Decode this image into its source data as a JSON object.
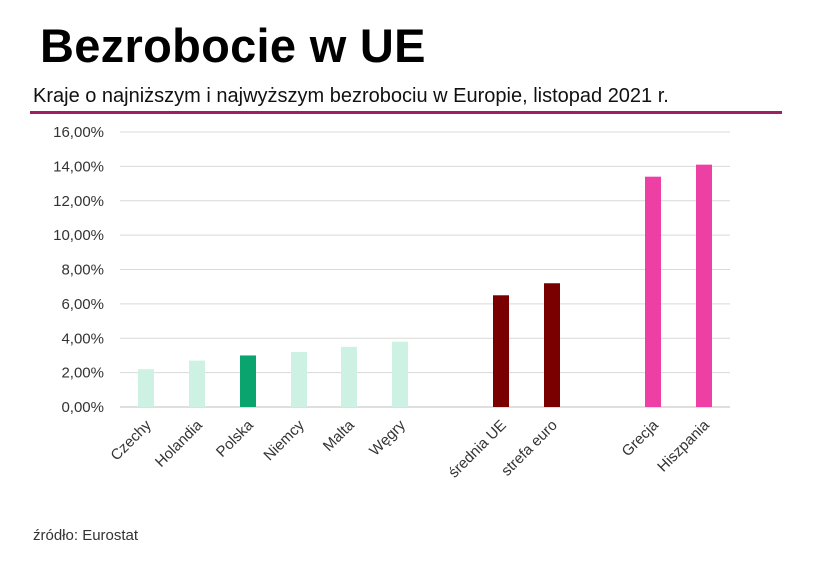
{
  "title": "Bezrobocie w UE",
  "subtitle": "Kraje o najniższym i najwyższym bezrobociu w Europie, listopad 2021 r.",
  "source": "źródło: Eurostat",
  "colors": {
    "accent_rule": "#9e1f63",
    "low_countries": "#cdf2e3",
    "poland": "#0aa46e",
    "averages": "#7a0000",
    "high_countries": "#ee3fa5",
    "grid": "#d9d9d9"
  },
  "chart_data": {
    "type": "bar",
    "title": "Kraje o najniższym i najwyższym bezrobociu w Europie, listopad 2021 r.",
    "xlabel": "",
    "ylabel": "",
    "ylim": [
      0,
      16
    ],
    "yticks": [
      "0,00%",
      "2,00%",
      "4,00%",
      "6,00%",
      "8,00%",
      "10,00%",
      "12,00%",
      "14,00%",
      "16,00%"
    ],
    "grid": true,
    "legend": "none",
    "categories": [
      "Czechy",
      "Holandia",
      "Polska",
      "Niemcy",
      "Malta",
      "Węgry",
      "średnia UE",
      "strefa euro",
      "Grecja",
      "Hiszpania"
    ],
    "values": [
      2.2,
      2.7,
      3.0,
      3.2,
      3.5,
      3.8,
      6.5,
      7.2,
      13.4,
      14.1
    ],
    "bar_colors": [
      "#cdf2e3",
      "#cdf2e3",
      "#0aa46e",
      "#cdf2e3",
      "#cdf2e3",
      "#cdf2e3",
      "#7a0000",
      "#7a0000",
      "#ee3fa5",
      "#ee3fa5"
    ],
    "groups": [
      [
        0,
        1,
        2,
        3,
        4,
        5
      ],
      [
        6,
        7
      ],
      [
        8,
        9
      ]
    ]
  }
}
